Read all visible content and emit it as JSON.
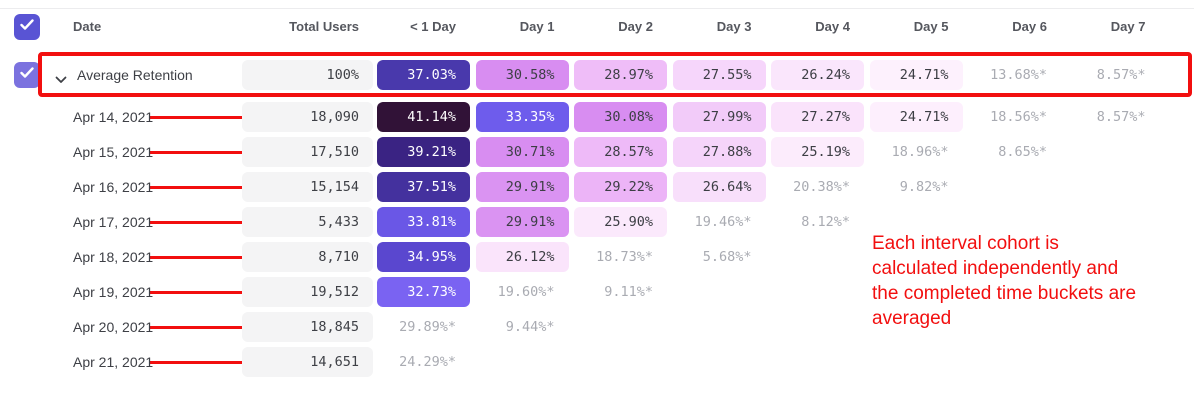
{
  "colors": {
    "annotation_red": "#f20f0f",
    "checkbox_header": "#5954d4",
    "checkbox_row": "#7b72df",
    "pill_neutral_bg": "#f4f4f5",
    "neutral_text": "#3e4046",
    "muted_value_text": "#a9abb2",
    "header_text": "#55575e"
  },
  "header": {
    "columns": [
      "Date",
      "Total Users",
      "< 1 Day",
      "Day 1",
      "Day 2",
      "Day 3",
      "Day 4",
      "Day 5",
      "Day 6",
      "Day 7"
    ]
  },
  "table": {
    "rows": [
      {
        "type": "average",
        "label": "Average Retention",
        "total": "100%",
        "cells": [
          {
            "v": "37.03%",
            "bg": "#4939ac",
            "fg": "#ffffff"
          },
          {
            "v": "30.58%",
            "bg": "#d88df1",
            "fg": "#3c3e44"
          },
          {
            "v": "28.97%",
            "bg": "#efbdf8",
            "fg": "#3c3e44"
          },
          {
            "v": "27.55%",
            "bg": "#f6d6fb",
            "fg": "#3c3e44"
          },
          {
            "v": "26.24%",
            "bg": "#fae6fc",
            "fg": "#3c3e44"
          },
          {
            "v": "24.71%",
            "bg": "#fdf1fd",
            "fg": "#3c3e44"
          },
          {
            "v": "13.68%*",
            "bg": "",
            "fg": "#a9abb2"
          },
          {
            "v": "8.57%*",
            "bg": "",
            "fg": "#a9abb2"
          }
        ]
      },
      {
        "type": "date",
        "label": "Apr 14, 2021",
        "total": "18,090",
        "cells": [
          {
            "v": "41.14%",
            "bg": "#311237",
            "fg": "#ffffff"
          },
          {
            "v": "33.35%",
            "bg": "#6e5cec",
            "fg": "#ffffff"
          },
          {
            "v": "30.08%",
            "bg": "#d88df1",
            "fg": "#3c3e44"
          },
          {
            "v": "27.99%",
            "bg": "#f2cbf9",
            "fg": "#3c3e44"
          },
          {
            "v": "27.27%",
            "bg": "#fae3fb",
            "fg": "#3c3e44"
          },
          {
            "v": "24.71%",
            "bg": "#fdeffd",
            "fg": "#3c3e44"
          },
          {
            "v": "18.56%*",
            "bg": "",
            "fg": "#a9abb2"
          },
          {
            "v": "8.57%*",
            "bg": "",
            "fg": "#a9abb2"
          }
        ]
      },
      {
        "type": "date",
        "label": "Apr 15, 2021",
        "total": "17,510",
        "cells": [
          {
            "v": "39.21%",
            "bg": "#3a2383",
            "fg": "#ffffff"
          },
          {
            "v": "30.71%",
            "bg": "#d88df1",
            "fg": "#3c3e44"
          },
          {
            "v": "28.57%",
            "bg": "#eebaf8",
            "fg": "#3c3e44"
          },
          {
            "v": "27.88%",
            "bg": "#f5d4fa",
            "fg": "#3c3e44"
          },
          {
            "v": "25.19%",
            "bg": "#fcecfc",
            "fg": "#3c3e44"
          },
          {
            "v": "18.96%*",
            "bg": "",
            "fg": "#a9abb2"
          },
          {
            "v": "8.65%*",
            "bg": "",
            "fg": "#a9abb2"
          },
          null
        ]
      },
      {
        "type": "date",
        "label": "Apr 16, 2021",
        "total": "15,154",
        "cells": [
          {
            "v": "37.51%",
            "bg": "#44319e",
            "fg": "#ffffff"
          },
          {
            "v": "29.91%",
            "bg": "#da93f2",
            "fg": "#3c3e44"
          },
          {
            "v": "29.22%",
            "bg": "#ecb4f7",
            "fg": "#3c3e44"
          },
          {
            "v": "26.64%",
            "bg": "#f8dffb",
            "fg": "#3c3e44"
          },
          {
            "v": "20.38%*",
            "bg": "",
            "fg": "#a9abb2"
          },
          {
            "v": "9.82%*",
            "bg": "",
            "fg": "#a9abb2"
          },
          null,
          null
        ]
      },
      {
        "type": "date",
        "label": "Apr 17, 2021",
        "total": "5,433",
        "cells": [
          {
            "v": "33.81%",
            "bg": "#6a57e6",
            "fg": "#ffffff"
          },
          {
            "v": "29.91%",
            "bg": "#da93f2",
            "fg": "#3c3e44"
          },
          {
            "v": "25.90%",
            "bg": "#fbe9fc",
            "fg": "#3c3e44"
          },
          {
            "v": "19.46%*",
            "bg": "",
            "fg": "#a9abb2"
          },
          {
            "v": "8.12%*",
            "bg": "",
            "fg": "#a9abb2"
          },
          null,
          null,
          null
        ]
      },
      {
        "type": "date",
        "label": "Apr 18, 2021",
        "total": "8,710",
        "cells": [
          {
            "v": "34.95%",
            "bg": "#5a47cf",
            "fg": "#ffffff"
          },
          {
            "v": "26.12%",
            "bg": "#fae4fb",
            "fg": "#3c3e44"
          },
          {
            "v": "18.73%*",
            "bg": "",
            "fg": "#a9abb2"
          },
          {
            "v": "5.68%*",
            "bg": "",
            "fg": "#a9abb2"
          },
          null,
          null,
          null,
          null
        ]
      },
      {
        "type": "date",
        "label": "Apr 19, 2021",
        "total": "19,512",
        "cells": [
          {
            "v": "32.73%",
            "bg": "#7a63f2",
            "fg": "#ffffff"
          },
          {
            "v": "19.60%*",
            "bg": "",
            "fg": "#a9abb2"
          },
          {
            "v": "9.11%*",
            "bg": "",
            "fg": "#a9abb2"
          },
          null,
          null,
          null,
          null,
          null
        ]
      },
      {
        "type": "date",
        "label": "Apr 20, 2021",
        "total": "18,845",
        "cells": [
          {
            "v": "29.89%*",
            "bg": "",
            "fg": "#a9abb2"
          },
          {
            "v": "9.44%*",
            "bg": "",
            "fg": "#a9abb2"
          },
          null,
          null,
          null,
          null,
          null,
          null
        ]
      },
      {
        "type": "date",
        "label": "Apr 21, 2021",
        "total": "14,651",
        "cells": [
          {
            "v": "24.29%*",
            "bg": "",
            "fg": "#a9abb2"
          },
          null,
          null,
          null,
          null,
          null,
          null,
          null
        ]
      }
    ]
  },
  "annotation": {
    "lines": [
      "Each interval cohort is",
      "calculated independently and",
      "the completed time buckets are",
      "averaged"
    ]
  }
}
